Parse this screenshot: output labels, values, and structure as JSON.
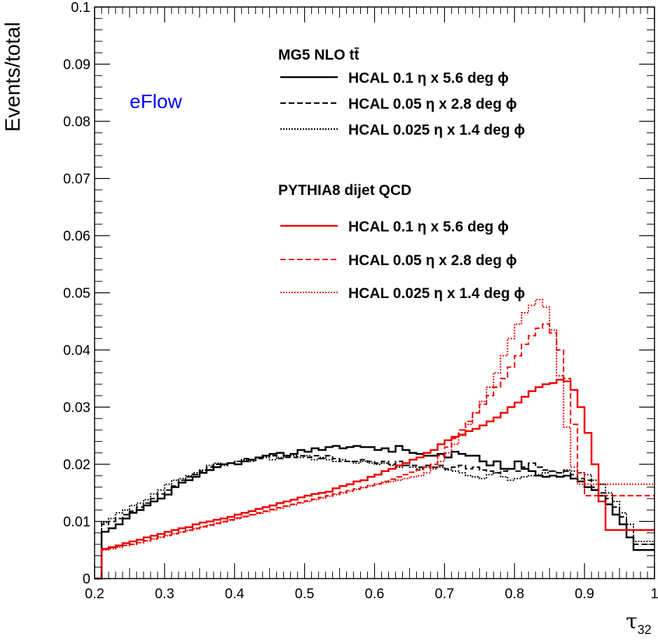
{
  "chart_data": {
    "type": "line",
    "title": "",
    "xlabel": "τ",
    "xlabel_sub": "32",
    "ylabel": "Events/total",
    "annotation": "eFlow",
    "xlim": [
      0.2,
      1.0
    ],
    "ylim": [
      0,
      0.1
    ],
    "xticks": [
      "0.2",
      "0.3",
      "0.4",
      "0.5",
      "0.6",
      "0.7",
      "0.8",
      "0.9",
      "1"
    ],
    "yticks": [
      "0",
      "0.01",
      "0.02",
      "0.03",
      "0.04",
      "0.05",
      "0.06",
      "0.07",
      "0.08",
      "0.09",
      "0.1"
    ],
    "grid": false,
    "legend_position": "top-right",
    "legend_groups": [
      {
        "header": "MG5 NLO tt̄",
        "series_indices": [
          0,
          1,
          2
        ]
      },
      {
        "header": "PYTHIA8 dijet QCD",
        "series_indices": [
          3,
          4,
          5
        ]
      }
    ],
    "bin_edges_start": 0.2,
    "bin_width": 0.01,
    "series": [
      {
        "name": "HCAL 0.1 η x 5.6 deg ϕ",
        "color": "#000000",
        "style": "solid",
        "values": [
          0.0,
          0.0082,
          0.0088,
          0.0095,
          0.0105,
          0.0115,
          0.012,
          0.0128,
          0.0135,
          0.014,
          0.0147,
          0.016,
          0.0168,
          0.0172,
          0.0178,
          0.0185,
          0.019,
          0.0195,
          0.02,
          0.0202,
          0.02,
          0.0205,
          0.0208,
          0.0212,
          0.0215,
          0.0218,
          0.022,
          0.0215,
          0.0218,
          0.0225,
          0.0222,
          0.0228,
          0.0225,
          0.023,
          0.0232,
          0.0228,
          0.023,
          0.0232,
          0.023,
          0.023,
          0.0225,
          0.0228,
          0.0222,
          0.0232,
          0.0225,
          0.022,
          0.0218,
          0.0215,
          0.0215,
          0.0218,
          0.0212,
          0.0222,
          0.0218,
          0.0215,
          0.0215,
          0.0205,
          0.0198,
          0.0205,
          0.0192,
          0.0192,
          0.0205,
          0.0192,
          0.0188,
          0.018,
          0.0178,
          0.018,
          0.0178,
          0.018,
          0.0175,
          0.017,
          0.016,
          0.0155,
          0.0145,
          0.013,
          0.0112,
          0.0095,
          0.0072,
          0.005,
          0.005,
          0.005
        ]
      },
      {
        "name": "HCAL 0.05 η x 2.8 deg ϕ",
        "color": "#000000",
        "style": "dashed",
        "values": [
          0.0,
          0.0095,
          0.01,
          0.0105,
          0.0112,
          0.0118,
          0.0125,
          0.0132,
          0.014,
          0.0148,
          0.0155,
          0.0162,
          0.0172,
          0.0178,
          0.0182,
          0.0188,
          0.0195,
          0.02,
          0.02,
          0.0202,
          0.0205,
          0.021,
          0.0208,
          0.021,
          0.0215,
          0.0215,
          0.021,
          0.0212,
          0.0212,
          0.0215,
          0.0212,
          0.0215,
          0.021,
          0.0215,
          0.021,
          0.0205,
          0.0205,
          0.0205,
          0.0208,
          0.0205,
          0.0202,
          0.0205,
          0.02,
          0.0205,
          0.0198,
          0.0198,
          0.0195,
          0.0198,
          0.0195,
          0.0198,
          0.0192,
          0.0195,
          0.0198,
          0.0192,
          0.0195,
          0.019,
          0.0188,
          0.0185,
          0.0188,
          0.0192,
          0.0188,
          0.0195,
          0.0202,
          0.0195,
          0.019,
          0.0188,
          0.0185,
          0.0188,
          0.0182,
          0.0175,
          0.0172,
          0.016,
          0.015,
          0.014,
          0.0125,
          0.0108,
          0.0085,
          0.006,
          0.006,
          0.006
        ]
      },
      {
        "name": "HCAL 0.025 η x 1.4 deg ϕ",
        "color": "#000000",
        "style": "dotted",
        "values": [
          0.0,
          0.0098,
          0.0105,
          0.0115,
          0.012,
          0.0128,
          0.0132,
          0.0138,
          0.0148,
          0.0155,
          0.0165,
          0.0172,
          0.0175,
          0.018,
          0.0185,
          0.019,
          0.0198,
          0.0202,
          0.0198,
          0.0202,
          0.0205,
          0.0208,
          0.0205,
          0.0212,
          0.0212,
          0.0208,
          0.0212,
          0.0215,
          0.0215,
          0.0212,
          0.0215,
          0.0208,
          0.0212,
          0.0208,
          0.0205,
          0.0208,
          0.0205,
          0.0202,
          0.0205,
          0.0202,
          0.02,
          0.0202,
          0.0198,
          0.0195,
          0.0198,
          0.0195,
          0.0192,
          0.0195,
          0.0192,
          0.0195,
          0.019,
          0.0188,
          0.0185,
          0.018,
          0.0178,
          0.0175,
          0.0182,
          0.0185,
          0.0178,
          0.0172,
          0.0175,
          0.0178,
          0.018,
          0.0182,
          0.0185,
          0.0188,
          0.0185,
          0.019,
          0.0188,
          0.0185,
          0.0182,
          0.0172,
          0.0165,
          0.015,
          0.0135,
          0.0115,
          0.0095,
          0.0065,
          0.0065,
          0.0065
        ]
      },
      {
        "name": "HCAL 0.1 η x 5.6 deg ϕ",
        "color": "#ee0000",
        "style": "solid",
        "values": [
          0.0,
          0.0052,
          0.0055,
          0.0058,
          0.0062,
          0.0065,
          0.0068,
          0.0072,
          0.0075,
          0.0078,
          0.0082,
          0.0085,
          0.0088,
          0.009,
          0.0095,
          0.0098,
          0.01,
          0.0103,
          0.0105,
          0.0108,
          0.0112,
          0.0115,
          0.0118,
          0.0122,
          0.0125,
          0.0128,
          0.0132,
          0.0135,
          0.0138,
          0.0142,
          0.0145,
          0.0148,
          0.015,
          0.0152,
          0.0158,
          0.0162,
          0.0165,
          0.017,
          0.0172,
          0.0178,
          0.0182,
          0.0188,
          0.0192,
          0.0198,
          0.0202,
          0.0208,
          0.0212,
          0.022,
          0.0225,
          0.0235,
          0.0242,
          0.0248,
          0.0252,
          0.0258,
          0.0262,
          0.0268,
          0.0275,
          0.0282,
          0.029,
          0.03,
          0.0308,
          0.0318,
          0.0328,
          0.0335,
          0.034,
          0.0342,
          0.0348,
          0.0345,
          0.033,
          0.03,
          0.0255,
          0.02,
          0.0135,
          0.0085,
          0.0085,
          0.0085,
          0.0085,
          0.0085,
          0.0085,
          0.0085
        ]
      },
      {
        "name": "HCAL 0.05 η x 2.8 deg ϕ",
        "color": "#ee0000",
        "style": "dashed",
        "values": [
          0.0,
          0.0052,
          0.0054,
          0.0056,
          0.0058,
          0.006,
          0.0063,
          0.0066,
          0.007,
          0.0073,
          0.0076,
          0.0079,
          0.0082,
          0.0085,
          0.0088,
          0.0091,
          0.0094,
          0.0097,
          0.01,
          0.0103,
          0.0106,
          0.0109,
          0.0112,
          0.0115,
          0.0118,
          0.0121,
          0.0124,
          0.0127,
          0.013,
          0.0133,
          0.0136,
          0.0139,
          0.0142,
          0.0145,
          0.0148,
          0.0151,
          0.0154,
          0.0157,
          0.016,
          0.0163,
          0.0166,
          0.017,
          0.0174,
          0.0178,
          0.0182,
          0.0186,
          0.019,
          0.0195,
          0.02,
          0.0215,
          0.023,
          0.0245,
          0.026,
          0.0275,
          0.029,
          0.0305,
          0.032,
          0.0335,
          0.035,
          0.037,
          0.039,
          0.041,
          0.0425,
          0.0438,
          0.0445,
          0.043,
          0.04,
          0.035,
          0.027,
          0.0185,
          0.0145,
          0.0145,
          0.0145,
          0.0145,
          0.0145,
          0.0145,
          0.0145,
          0.0145,
          0.0145,
          0.0145
        ]
      },
      {
        "name": "HCAL 0.025 η x 1.4 deg ϕ",
        "color": "#ee0000",
        "style": "dotted",
        "values": [
          0.0,
          0.005,
          0.0052,
          0.0055,
          0.0058,
          0.006,
          0.0063,
          0.0066,
          0.0069,
          0.0072,
          0.0075,
          0.0078,
          0.0081,
          0.0084,
          0.0087,
          0.009,
          0.0093,
          0.0096,
          0.0099,
          0.0102,
          0.0105,
          0.0108,
          0.0111,
          0.0114,
          0.0117,
          0.012,
          0.0123,
          0.0126,
          0.0129,
          0.0132,
          0.0135,
          0.0138,
          0.0141,
          0.0144,
          0.0147,
          0.015,
          0.0153,
          0.0156,
          0.0159,
          0.0162,
          0.0165,
          0.0168,
          0.017,
          0.0172,
          0.0175,
          0.0178,
          0.018,
          0.0185,
          0.0195,
          0.0205,
          0.022,
          0.0235,
          0.025,
          0.027,
          0.029,
          0.031,
          0.0335,
          0.036,
          0.039,
          0.042,
          0.0445,
          0.0465,
          0.0478,
          0.0488,
          0.0475,
          0.0435,
          0.0355,
          0.0265,
          0.0195,
          0.0165,
          0.0165,
          0.0165,
          0.0165,
          0.0165,
          0.0165,
          0.0165,
          0.0165,
          0.0165,
          0.0165,
          0.0165
        ]
      }
    ]
  }
}
